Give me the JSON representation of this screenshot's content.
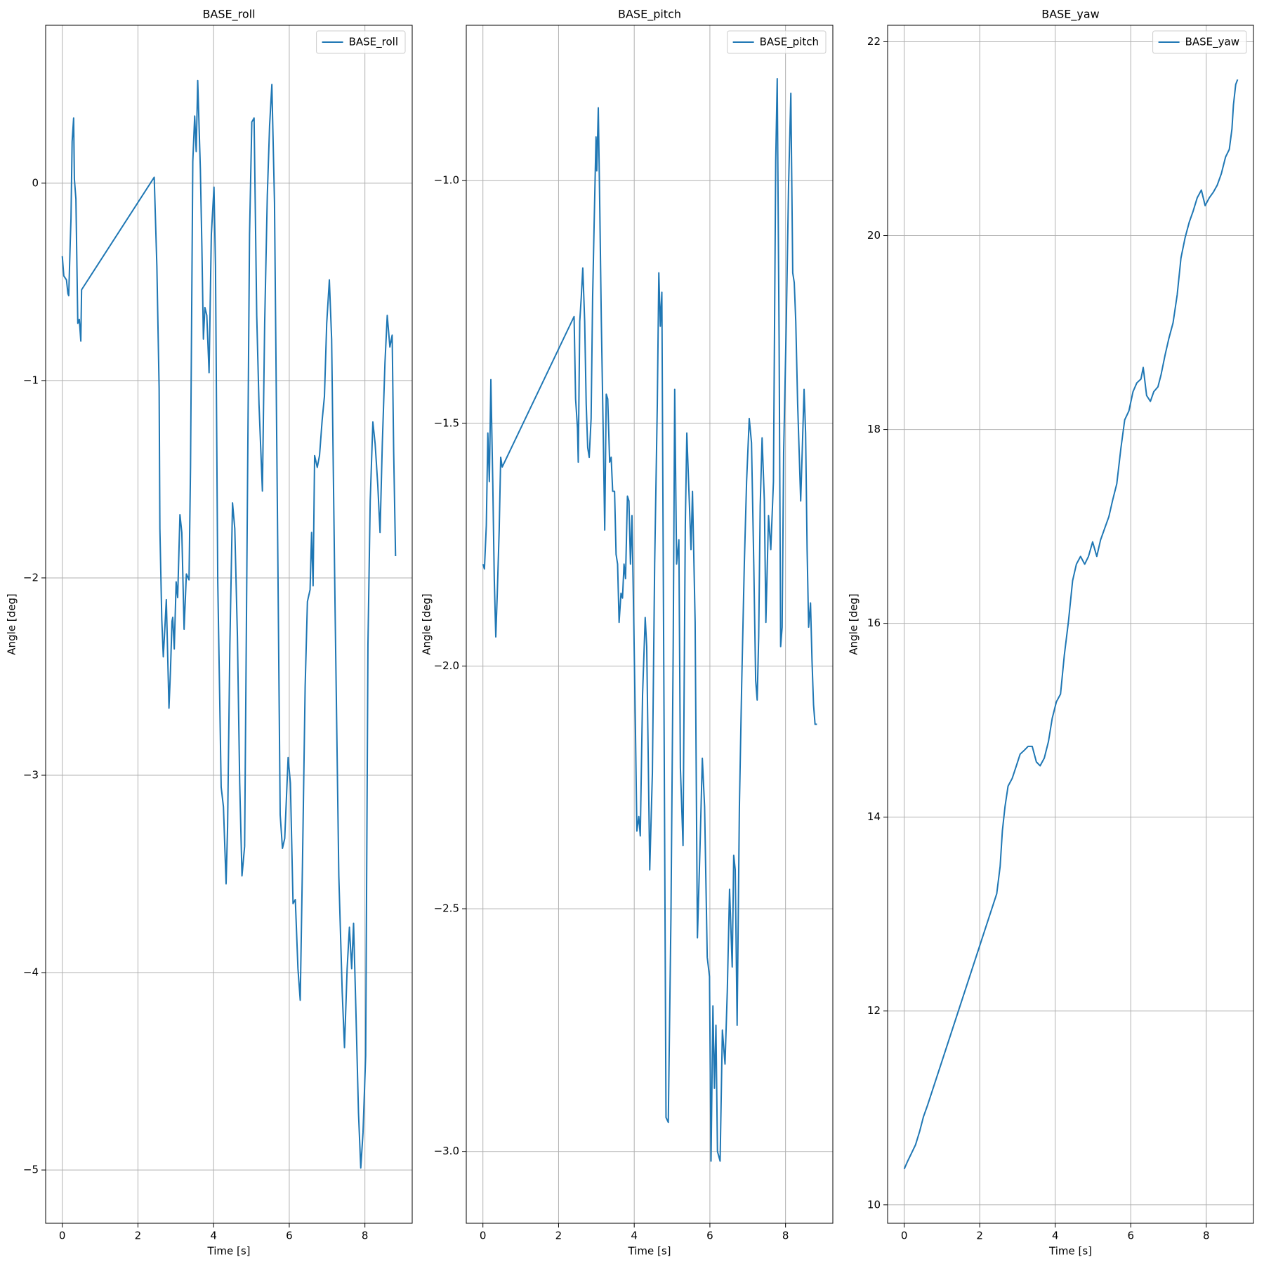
{
  "chart_data": [
    {
      "type": "line",
      "title": "BASE_roll",
      "xlabel": "Time [s]",
      "ylabel": "Angle [deg]",
      "x": [
        0,
        0.04,
        0.11,
        0.15,
        0.17,
        0.21,
        0.23,
        0.26,
        0.3,
        0.32,
        0.36,
        0.41,
        0.45,
        0.49,
        0.51,
        2.43,
        2.5,
        2.56,
        2.58,
        2.63,
        2.67,
        2.71,
        2.75,
        2.82,
        2.86,
        2.9,
        2.92,
        2.96,
        3.01,
        3.05,
        3.11,
        3.16,
        3.22,
        3.28,
        3.35,
        3.39,
        3.45,
        3.5,
        3.54,
        3.58,
        3.65,
        3.69,
        3.73,
        3.77,
        3.82,
        3.88,
        3.94,
        4.01,
        4.05,
        4.11,
        4.2,
        4.26,
        4.33,
        4.37,
        4.43,
        4.5,
        4.56,
        4.63,
        4.69,
        4.75,
        4.82,
        4.88,
        4.95,
        5.01,
        5.07,
        5.14,
        5.2,
        5.29,
        5.35,
        5.42,
        5.48,
        5.54,
        5.61,
        5.69,
        5.76,
        5.82,
        5.88,
        5.97,
        6.03,
        6.1,
        6.16,
        6.23,
        6.29,
        6.35,
        6.42,
        6.48,
        6.55,
        6.59,
        6.63,
        6.67,
        6.74,
        6.8,
        6.87,
        6.93,
        6.99,
        7.06,
        7.12,
        7.21,
        7.31,
        7.4,
        7.46,
        7.53,
        7.59,
        7.65,
        7.7,
        7.76,
        7.83,
        7.89,
        7.95,
        8.02,
        8.08,
        8.14,
        8.21,
        8.27,
        8.34,
        8.4,
        8.46,
        8.53,
        8.59,
        8.66,
        8.72,
        8.76,
        8.81
      ],
      "series": [
        {
          "name": "BASE_roll",
          "color": "#1f77b4",
          "values": [
            -0.37,
            -0.47,
            -0.49,
            -0.56,
            -0.57,
            -0.3,
            -0.18,
            0.21,
            0.33,
            0.02,
            -0.08,
            -0.71,
            -0.69,
            -0.8,
            -0.54,
            0.03,
            -0.42,
            -1.04,
            -1.75,
            -2.21,
            -2.4,
            -2.26,
            -2.11,
            -2.66,
            -2.47,
            -2.22,
            -2.2,
            -2.36,
            -2.02,
            -2.1,
            -1.68,
            -1.77,
            -2.26,
            -1.98,
            -2.01,
            -1.44,
            0.11,
            0.34,
            0.16,
            0.52,
            0.07,
            -0.32,
            -0.79,
            -0.63,
            -0.67,
            -0.96,
            -0.26,
            -0.02,
            -0.42,
            -2.02,
            -3.06,
            -3.16,
            -3.55,
            -3.26,
            -2.34,
            -1.62,
            -1.75,
            -2.3,
            -3.04,
            -3.51,
            -3.36,
            -1.93,
            -0.26,
            0.31,
            0.33,
            -0.67,
            -1.12,
            -1.56,
            -0.71,
            -0.06,
            0.29,
            0.5,
            -0.1,
            -1.73,
            -3.2,
            -3.37,
            -3.32,
            -2.91,
            -3.04,
            -3.65,
            -3.63,
            -3.98,
            -4.14,
            -3.44,
            -2.55,
            -2.12,
            -2.06,
            -1.77,
            -2.04,
            -1.38,
            -1.44,
            -1.38,
            -1.2,
            -1.08,
            -0.71,
            -0.49,
            -0.79,
            -2.14,
            -3.51,
            -4.1,
            -4.38,
            -3.98,
            -3.77,
            -3.98,
            -3.75,
            -4.18,
            -4.71,
            -4.99,
            -4.81,
            -4.42,
            -2.34,
            -1.61,
            -1.21,
            -1.32,
            -1.53,
            -1.77,
            -1.32,
            -0.91,
            -0.67,
            -0.83,
            -0.77,
            -1.36,
            -1.89
          ]
        }
      ],
      "xlim": [
        -0.44,
        9.25
      ],
      "ylim": [
        -5.27,
        0.8
      ],
      "xticks": [
        0,
        2,
        4,
        6,
        8
      ],
      "yticks": [
        {
          "value": -5,
          "label": "−5"
        },
        {
          "value": -4,
          "label": "−4"
        },
        {
          "value": -3,
          "label": "−3"
        },
        {
          "value": -2,
          "label": "−2"
        },
        {
          "value": -1,
          "label": "−1"
        },
        0
      ],
      "grid": true,
      "legend": "upper right"
    },
    {
      "type": "line",
      "title": "BASE_pitch",
      "xlabel": "Time [s]",
      "ylabel": "Angle [deg]",
      "x": [
        0,
        0.04,
        0.09,
        0.13,
        0.17,
        0.21,
        0.26,
        0.3,
        0.34,
        0.38,
        0.43,
        0.47,
        0.51,
        2.41,
        2.45,
        2.5,
        2.52,
        2.56,
        2.6,
        2.64,
        2.69,
        2.73,
        2.77,
        2.81,
        2.86,
        2.9,
        2.94,
        2.99,
        3.01,
        3.05,
        3.09,
        3.13,
        3.18,
        3.22,
        3.26,
        3.3,
        3.35,
        3.39,
        3.43,
        3.48,
        3.52,
        3.56,
        3.6,
        3.65,
        3.69,
        3.73,
        3.77,
        3.82,
        3.86,
        3.9,
        3.94,
        3.99,
        4.03,
        4.07,
        4.12,
        4.16,
        4.22,
        4.29,
        4.33,
        4.41,
        4.48,
        4.54,
        4.61,
        4.65,
        4.69,
        4.73,
        4.8,
        4.84,
        4.9,
        4.97,
        5.03,
        5.07,
        5.12,
        5.18,
        5.22,
        5.29,
        5.35,
        5.39,
        5.46,
        5.5,
        5.54,
        5.61,
        5.67,
        5.74,
        5.8,
        5.86,
        5.93,
        5.99,
        6.03,
        6.08,
        6.12,
        6.16,
        6.2,
        6.27,
        6.33,
        6.4,
        6.46,
        6.52,
        6.59,
        6.63,
        6.67,
        6.72,
        6.78,
        6.84,
        6.91,
        6.97,
        7.04,
        7.1,
        7.16,
        7.21,
        7.25,
        7.29,
        7.33,
        7.38,
        7.44,
        7.48,
        7.55,
        7.61,
        7.68,
        7.74,
        7.78,
        7.83,
        7.87,
        7.91,
        7.95,
        8.02,
        8.08,
        8.14,
        8.19,
        8.23,
        8.27,
        8.32,
        8.36,
        8.4,
        8.44,
        8.49,
        8.53,
        8.57,
        8.61,
        8.66,
        8.7,
        8.74,
        8.78,
        8.83
      ],
      "series": [
        {
          "name": "BASE_pitch",
          "color": "#1f77b4",
          "values": [
            -1.79,
            -1.8,
            -1.71,
            -1.52,
            -1.62,
            -1.41,
            -1.62,
            -1.82,
            -1.94,
            -1.85,
            -1.72,
            -1.57,
            -1.59,
            -1.28,
            -1.45,
            -1.51,
            -1.58,
            -1.29,
            -1.24,
            -1.18,
            -1.29,
            -1.46,
            -1.55,
            -1.57,
            -1.49,
            -1.24,
            -1.09,
            -0.91,
            -0.98,
            -0.85,
            -1.06,
            -1.29,
            -1.52,
            -1.72,
            -1.44,
            -1.45,
            -1.58,
            -1.57,
            -1.64,
            -1.64,
            -1.77,
            -1.79,
            -1.91,
            -1.85,
            -1.86,
            -1.79,
            -1.82,
            -1.65,
            -1.66,
            -1.79,
            -1.69,
            -1.92,
            -2.12,
            -2.34,
            -2.31,
            -2.35,
            -2.06,
            -1.9,
            -1.96,
            -2.42,
            -2.22,
            -1.79,
            -1.46,
            -1.19,
            -1.3,
            -1.23,
            -2.29,
            -2.93,
            -2.94,
            -2.52,
            -1.96,
            -1.43,
            -1.79,
            -1.74,
            -2.21,
            -2.37,
            -1.71,
            -1.52,
            -1.67,
            -1.76,
            -1.64,
            -1.91,
            -2.56,
            -2.37,
            -2.19,
            -2.29,
            -2.6,
            -2.64,
            -3.02,
            -2.7,
            -2.87,
            -2.74,
            -3.0,
            -3.02,
            -2.75,
            -2.82,
            -2.67,
            -2.46,
            -2.62,
            -2.39,
            -2.42,
            -2.74,
            -2.29,
            -2.04,
            -1.79,
            -1.62,
            -1.49,
            -1.54,
            -1.79,
            -2.03,
            -2.07,
            -1.94,
            -1.67,
            -1.53,
            -1.66,
            -1.91,
            -1.69,
            -1.76,
            -1.62,
            -0.96,
            -0.79,
            -1.33,
            -1.96,
            -1.92,
            -1.56,
            -1.29,
            -1.01,
            -0.82,
            -1.19,
            -1.21,
            -1.29,
            -1.46,
            -1.56,
            -1.66,
            -1.56,
            -1.43,
            -1.52,
            -1.76,
            -1.92,
            -1.87,
            -1.99,
            -2.08,
            -2.12,
            -2.12
          ]
        }
      ],
      "xlim": [
        -0.44,
        9.25
      ],
      "ylim": [
        -3.148,
        -0.68
      ],
      "xticks": [
        0,
        2,
        4,
        6,
        8
      ],
      "yticks": [
        {
          "value": -3,
          "label": "−3.0"
        },
        {
          "value": -2.5,
          "label": "−2.5"
        },
        {
          "value": -2,
          "label": "−2.0"
        },
        {
          "value": -1.5,
          "label": "−1.5"
        },
        {
          "value": -1,
          "label": "−1.0"
        }
      ],
      "grid": true,
      "legend": "upper right"
    },
    {
      "type": "line",
      "title": "BASE_yaw",
      "xlabel": "Time [s]",
      "ylabel": "Angle [deg]",
      "x": [
        0,
        0.09,
        0.19,
        0.3,
        0.41,
        0.51,
        0.62,
        2.45,
        2.54,
        2.6,
        2.67,
        2.75,
        2.86,
        2.97,
        3.07,
        3.18,
        3.28,
        3.39,
        3.5,
        3.6,
        3.71,
        3.82,
        3.92,
        4.03,
        4.14,
        4.24,
        4.35,
        4.46,
        4.56,
        4.67,
        4.78,
        4.88,
        4.99,
        5.1,
        5.2,
        5.31,
        5.42,
        5.52,
        5.63,
        5.74,
        5.84,
        5.95,
        6.06,
        6.16,
        6.27,
        6.33,
        6.42,
        6.52,
        6.61,
        6.72,
        6.8,
        6.91,
        7.01,
        7.12,
        7.23,
        7.33,
        7.44,
        7.55,
        7.65,
        7.76,
        7.87,
        7.97,
        8.08,
        8.19,
        8.29,
        8.4,
        8.51,
        8.61,
        8.68,
        8.72,
        8.78,
        8.83
      ],
      "series": [
        {
          "name": "BASE_yaw",
          "color": "#1f77b4",
          "values": [
            10.37,
            10.45,
            10.53,
            10.62,
            10.76,
            10.91,
            11.03,
            13.21,
            13.49,
            13.86,
            14.11,
            14.32,
            14.4,
            14.53,
            14.65,
            14.69,
            14.73,
            14.73,
            14.57,
            14.53,
            14.61,
            14.78,
            15.02,
            15.19,
            15.27,
            15.67,
            16.02,
            16.44,
            16.61,
            16.69,
            16.61,
            16.69,
            16.84,
            16.69,
            16.86,
            16.98,
            17.1,
            17.27,
            17.44,
            17.81,
            18.1,
            18.19,
            18.39,
            18.48,
            18.52,
            18.64,
            18.35,
            18.29,
            18.39,
            18.44,
            18.56,
            18.77,
            18.94,
            19.1,
            19.39,
            19.77,
            19.98,
            20.14,
            20.25,
            20.39,
            20.47,
            20.31,
            20.39,
            20.45,
            20.52,
            20.64,
            20.81,
            20.89,
            21.1,
            21.35,
            21.56,
            21.61
          ]
        }
      ],
      "xlim": [
        -0.44,
        9.25
      ],
      "ylim": [
        9.81,
        22.17
      ],
      "xticks": [
        0,
        2,
        4,
        6,
        8
      ],
      "yticks": [
        10,
        12,
        14,
        16,
        18,
        20,
        22
      ],
      "grid": true,
      "legend": "upper right"
    }
  ]
}
